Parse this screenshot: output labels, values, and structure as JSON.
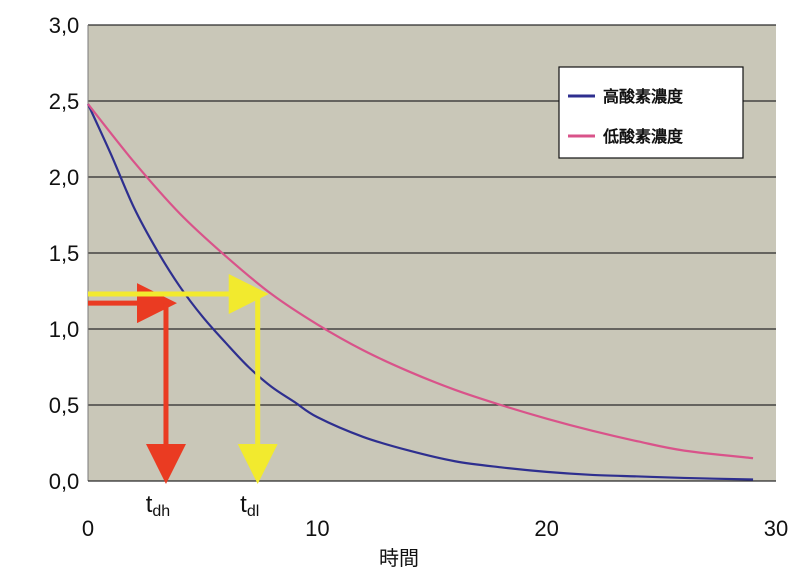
{
  "chart_data": {
    "type": "line",
    "title": "",
    "xlabel": "時間",
    "ylabel": "",
    "xlim": [
      0,
      30
    ],
    "ylim": [
      0,
      3
    ],
    "x_ticks": [
      0,
      10,
      20,
      30
    ],
    "x_tick_labels": [
      "0",
      "10",
      "20",
      "30"
    ],
    "y_ticks": [
      0,
      0.5,
      1,
      1.5,
      2,
      2.5,
      3
    ],
    "y_tick_labels": [
      "0,0",
      "0,5",
      "1,0",
      "1,5",
      "2,0",
      "2,5",
      "3,0"
    ],
    "grid": "horizontal",
    "legend_position": "top-right",
    "series": [
      {
        "name": "高酸素濃度",
        "color": "#2e2f8f",
        "x": [
          0,
          1,
          2,
          3,
          4,
          5,
          6,
          7,
          8,
          9,
          10,
          12,
          14,
          16,
          18,
          20,
          22,
          24,
          26,
          29
        ],
        "y": [
          2.48,
          2.15,
          1.8,
          1.52,
          1.28,
          1.08,
          0.91,
          0.75,
          0.62,
          0.52,
          0.42,
          0.29,
          0.2,
          0.13,
          0.09,
          0.06,
          0.04,
          0.03,
          0.02,
          0.01
        ]
      },
      {
        "name": "低酸素濃度",
        "color": "#d9538a",
        "x": [
          0,
          2,
          4,
          6,
          8,
          10,
          12,
          14,
          16,
          18,
          20,
          22,
          24,
          26,
          29
        ],
        "y": [
          2.48,
          2.1,
          1.76,
          1.48,
          1.23,
          1.03,
          0.86,
          0.72,
          0.6,
          0.5,
          0.41,
          0.33,
          0.26,
          0.2,
          0.15
        ]
      }
    ],
    "annotations": [
      {
        "label": "t",
        "subscript": "dh",
        "color": "#ea3b22",
        "y": 1.17,
        "x": 3.4
      },
      {
        "label": "t",
        "subscript": "dl",
        "color": "#f2ea2e",
        "y": 1.23,
        "x": 7.4
      }
    ]
  }
}
